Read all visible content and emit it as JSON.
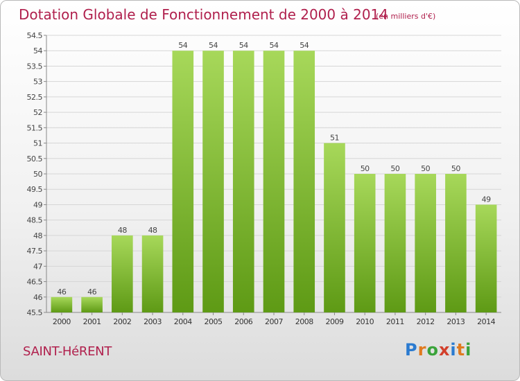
{
  "header": {
    "title": "Dotation Globale de Fonctionnement de 2000 à 2014",
    "subtitle": "(en milliers d'€)"
  },
  "footer": {
    "commune": "SAINT-HéRENT",
    "logo_text": "Proxiti",
    "logo_colors": [
      "#2b7bd0",
      "#e07a1f",
      "#3aa33a",
      "#d23f2b",
      "#2b7bd0",
      "#e07a1f",
      "#3aa33a"
    ]
  },
  "chart_data": {
    "type": "bar",
    "categories": [
      "2000",
      "2001",
      "2002",
      "2003",
      "2004",
      "2005",
      "2006",
      "2007",
      "2008",
      "2009",
      "2010",
      "2011",
      "2012",
      "2013",
      "2014"
    ],
    "values": [
      46,
      46,
      48,
      48,
      54,
      54,
      54,
      54,
      54,
      51,
      50,
      50,
      50,
      50,
      49
    ],
    "data_labels": [
      "46",
      "46",
      "48",
      "48",
      "54",
      "54",
      "54",
      "54",
      "54",
      "51",
      "50",
      "50",
      "50",
      "50",
      "49"
    ],
    "y_ticks": [
      "45.5",
      "46",
      "46.5",
      "47",
      "47.5",
      "48",
      "48.5",
      "49",
      "49.5",
      "50",
      "50.5",
      "51",
      "51.5",
      "52",
      "52.5",
      "53",
      "53.5",
      "54",
      "54.5"
    ],
    "ylim": [
      45.5,
      54.5
    ],
    "bar_color_top": "#a7d85a",
    "bar_color_bottom": "#5e9a15",
    "grid": true,
    "legend": "none"
  }
}
